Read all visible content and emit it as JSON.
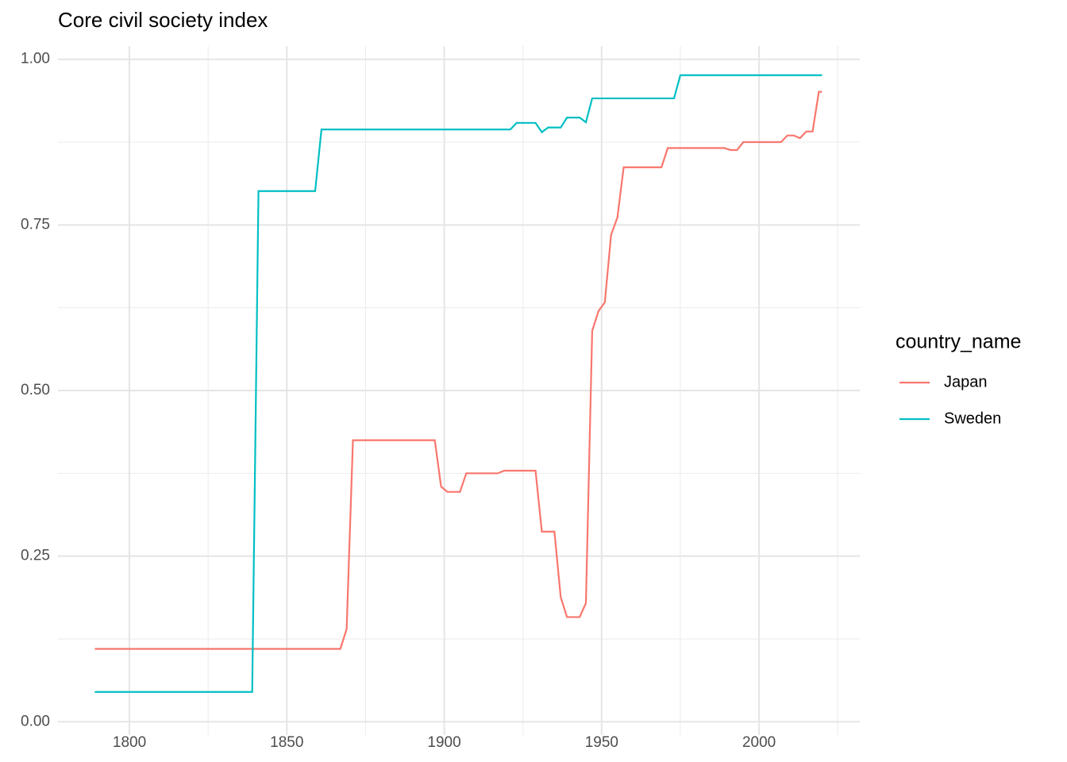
{
  "chart_data": {
    "type": "line",
    "title": "Core civil society index",
    "legend_title": "country_name",
    "legend_position": "right",
    "grid": true,
    "xlim": [
      1777.3,
      2032
    ],
    "xticks": [
      1800,
      1850,
      1900,
      1950,
      2000
    ],
    "ylim": [
      -0.02,
      1.02
    ],
    "yticks": [
      {
        "value": 0,
        "label": "0.00"
      },
      {
        "value": 0.25,
        "label": "0.25"
      },
      {
        "value": 0.5,
        "label": "0.50"
      },
      {
        "value": 0.75,
        "label": "0.75"
      },
      {
        "value": 1,
        "label": "1.00"
      }
    ],
    "series": [
      {
        "name": "Japan",
        "color": "#F8766D",
        "x": [
          1789,
          1867,
          1869,
          1871,
          1897,
          1899,
          1901,
          1905,
          1907,
          1917,
          1919,
          1929,
          1931,
          1935,
          1937,
          1939,
          1943,
          1945,
          1947,
          1949,
          1951,
          1953,
          1955,
          1957,
          1969,
          1971,
          1989,
          1991,
          1993,
          1995,
          2007,
          2009,
          2011,
          2013,
          2015,
          2017,
          2019,
          2020
        ],
        "values": [
          0.11,
          0.11,
          0.14,
          0.425,
          0.425,
          0.355,
          0.347,
          0.347,
          0.375,
          0.375,
          0.379,
          0.379,
          0.287,
          0.287,
          0.188,
          0.158,
          0.158,
          0.179,
          0.59,
          0.62,
          0.633,
          0.735,
          0.761,
          0.837,
          0.837,
          0.866,
          0.866,
          0.863,
          0.863,
          0.875,
          0.875,
          0.885,
          0.885,
          0.881,
          0.891,
          0.891,
          0.951,
          0.951
        ]
      },
      {
        "name": "Sweden",
        "color": "#00BFC4",
        "x": [
          1789,
          1839,
          1841,
          1859,
          1861,
          1921,
          1923,
          1929,
          1931,
          1933,
          1937,
          1939,
          1943,
          1945,
          1947,
          1973,
          1975,
          2020
        ],
        "values": [
          0.045,
          0.045,
          0.801,
          0.801,
          0.894,
          0.894,
          0.904,
          0.904,
          0.89,
          0.897,
          0.897,
          0.912,
          0.912,
          0.905,
          0.941,
          0.941,
          0.976,
          0.976
        ]
      }
    ]
  }
}
